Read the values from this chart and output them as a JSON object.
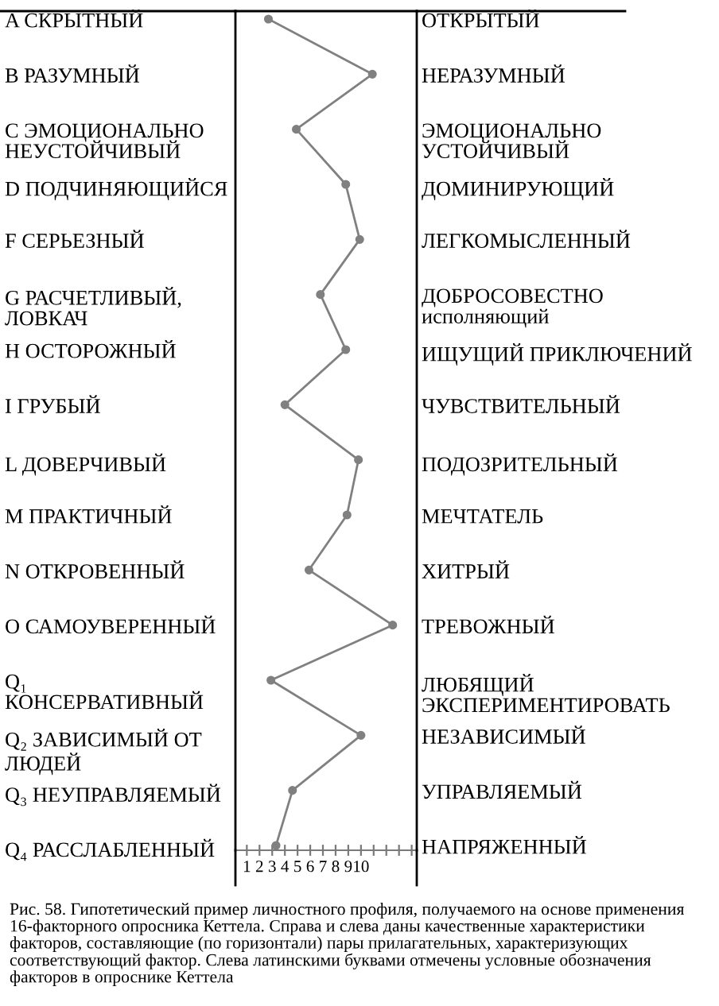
{
  "chart_data": {
    "type": "line",
    "orientation": "horizontal",
    "categories": [
      "A СКРЫТНЫЙ",
      "В РАЗУМНЫЙ",
      "C ЭМОЦИОНАЛЬНО НЕУСТОЙЧИВЫЙ",
      "D ПОДЧИНЯЮЩИЙСЯ",
      "F СЕРЬЕЗНЫЙ",
      "G РАСЧЕТЛИВЫЙ, ЛОВКАЧ",
      "H ОСТОРОЖНЫЙ",
      "I ГРУБЫЙ",
      "L ДОВЕРЧИВЫЙ",
      "M ПРАКТИЧНЫЙ",
      "N ОТКРОВЕННЫЙ",
      "O САМОУВЕРЕННЫЙ",
      "Q₁ КОНСЕРВАТИВНЫЙ",
      "Q₂ ЗАВИСИМЫЙ ОТ ЛЮДЕЙ",
      "Q₃ НЕУПРАВЛЯЕМЫЙ",
      "Q₄ РАССЛАБЛЕННЫЙ"
    ],
    "y2_categories": [
      "ОТКРЫТЫЙ",
      "НЕРАЗУМНЫЙ",
      "ЭМОЦИОНАЛЬНО УСТОЙЧИВЫЙ",
      "ДОМИНИРУЮЩИЙ",
      "ЛЕГКОМЫСЛЕННЫЙ",
      "ДОБРОСОВЕСТНО исполняющий",
      "ИЩУЩИЙ ПРИКЛЮЧЕНИЙ",
      "ЧУВСТВИТЕЛЬНЫЙ",
      "ПОДОЗРИТЕЛЬНЫЙ",
      "МЕЧТАТЕЛЬ",
      "ХИТРЫЙ",
      "ТРЕВОЖНЫЙ",
      "ЛЮБЯЩИЙ ЭКСПЕРИМЕНТИРОВАТЬ",
      "НЕЗАВИСИМЫЙ",
      "УПРАВЛЯЕМЫЙ",
      "НАПРЯЖЕННЫЙ"
    ],
    "series": [
      {
        "color": "#808080",
        "values": [
          2.7,
          10.9,
          4.9,
          8.8,
          9.9,
          6.8,
          8.8,
          4.0,
          9.8,
          8.9,
          5.9,
          12.5,
          2.9,
          10.0,
          4.6,
          3.3
        ]
      }
    ],
    "xlim": [
      0.1,
      14.4
    ],
    "xticks": [
      1,
      2,
      3,
      4,
      5,
      6,
      7,
      8,
      9,
      10,
      {
        "value": 11,
        "label": null
      },
      {
        "value": 12,
        "label": null
      },
      {
        "value": 13,
        "label": null
      },
      {
        "value": 14,
        "label": null
      }
    ],
    "marker": "circle",
    "line_style": "solid",
    "annotations": [
      "Рис. 58. Гипотетический пример личностного профиля, получаемого на основе применения 16-факторного опросника Кеттела. Справа и слева даны качественные характеристики факторов, составляющие (по горизонтали) пары прилагательных, характеризующих соответствующий фактор. Слева латинскими буквами отмечены условные обозначения факторов в опроснике Кеттела"
    ]
  }
}
